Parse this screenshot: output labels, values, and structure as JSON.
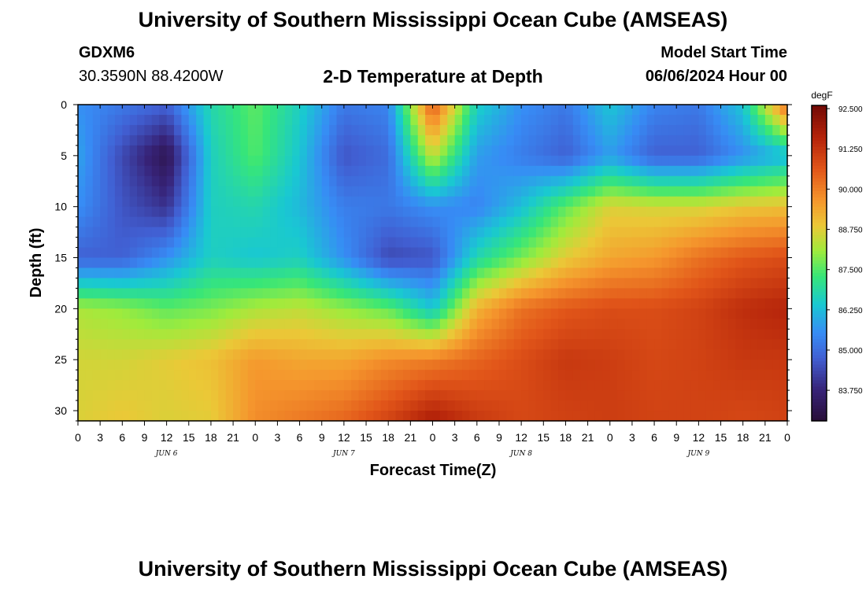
{
  "header": {
    "title": "University of Southern Mississippi Ocean Cube (AMSEAS)",
    "station": "GDXM6",
    "coords": "30.3590N  88.4200W",
    "subtitle": "2-D Temperature at Depth",
    "model_start_label": "Model Start Time",
    "model_start_date": "06/06/2024 Hour 00"
  },
  "footer": {
    "title": "University of Southern Mississippi Ocean Cube (AMSEAS)"
  },
  "chart_data": {
    "type": "heatmap",
    "title": "2-D Temperature at Depth",
    "xlabel": "Forecast Time(Z)",
    "ylabel": "Depth (ft)",
    "xlim": [
      0,
      96
    ],
    "ylim": [
      0,
      31
    ],
    "x_tick_values": [
      0,
      3,
      6,
      9,
      12,
      15,
      18,
      21,
      24,
      27,
      30,
      33,
      36,
      39,
      42,
      45,
      48,
      51,
      54,
      57,
      60,
      63,
      66,
      69,
      72,
      75,
      78,
      81,
      84,
      87,
      90,
      93,
      96
    ],
    "x_tick_labels": [
      "0",
      "3",
      "6",
      "9",
      "12",
      "15",
      "18",
      "21",
      "0",
      "3",
      "6",
      "9",
      "12",
      "15",
      "18",
      "21",
      "0",
      "3",
      "6",
      "9",
      "12",
      "15",
      "18",
      "21",
      "0",
      "3",
      "6",
      "9",
      "12",
      "15",
      "18",
      "21",
      "0"
    ],
    "day_labels": [
      {
        "label": "JUN 6",
        "x": 12
      },
      {
        "label": "JUN 7",
        "x": 36
      },
      {
        "label": "JUN 8",
        "x": 60
      },
      {
        "label": "JUN 9",
        "x": 84
      }
    ],
    "y_tick_values": [
      0,
      5,
      10,
      15,
      20,
      25,
      30
    ],
    "y_tick_labels": [
      "0",
      "5",
      "10",
      "15",
      "20",
      "25",
      "30"
    ],
    "colorbar": {
      "unit": "degF",
      "min": 82.8,
      "max": 92.6,
      "tick_values": [
        92.5,
        91.25,
        90.0,
        88.75,
        87.5,
        86.25,
        85.0,
        83.75
      ],
      "tick_labels": [
        "92.500",
        "91.250",
        "90.000",
        "88.750",
        "87.500",
        "86.250",
        "85.000",
        "83.750"
      ]
    },
    "depths_ft": [
      0,
      5,
      10,
      15,
      20,
      25,
      31
    ],
    "times_hr": [
      0,
      6,
      12,
      18,
      24,
      30,
      36,
      42,
      48,
      54,
      60,
      66,
      72,
      78,
      84,
      90,
      96
    ],
    "temperature_degF": [
      [
        85.6,
        85.2,
        84.8,
        86.8,
        87.6,
        86.6,
        85.2,
        85.4,
        90.6,
        86.6,
        85.6,
        85.2,
        86.4,
        85.4,
        85.2,
        86.4,
        90.4
      ],
      [
        85.9,
        84.4,
        83.2,
        86.6,
        87.5,
        86.4,
        84.6,
        85.0,
        88.5,
        85.8,
        85.3,
        84.8,
        85.8,
        84.8,
        84.8,
        85.6,
        86.2
      ],
      [
        85.6,
        84.6,
        84.0,
        86.6,
        86.8,
        86.2,
        85.3,
        85.2,
        85.6,
        85.4,
        86.3,
        87.6,
        88.7,
        88.6,
        88.6,
        88.9,
        89.0
      ],
      [
        84.8,
        84.8,
        85.6,
        86.6,
        86.4,
        86.6,
        85.6,
        84.4,
        84.6,
        86.8,
        87.8,
        88.8,
        89.4,
        89.6,
        90.2,
        90.6,
        90.8
      ],
      [
        88.2,
        88.0,
        87.6,
        87.8,
        88.2,
        88.4,
        88.0,
        87.6,
        86.4,
        89.2,
        90.2,
        90.6,
        90.8,
        90.8,
        91.0,
        91.4,
        91.6
      ],
      [
        88.6,
        88.6,
        88.8,
        89.0,
        89.6,
        89.4,
        89.4,
        89.8,
        90.0,
        90.4,
        90.8,
        91.2,
        91.1,
        90.9,
        91.0,
        91.2,
        91.2
      ],
      [
        88.7,
        88.9,
        88.7,
        88.8,
        89.8,
        90.1,
        90.4,
        91.0,
        91.8,
        91.2,
        90.9,
        91.0,
        91.1,
        91.0,
        91.0,
        90.9,
        91.0
      ]
    ]
  }
}
